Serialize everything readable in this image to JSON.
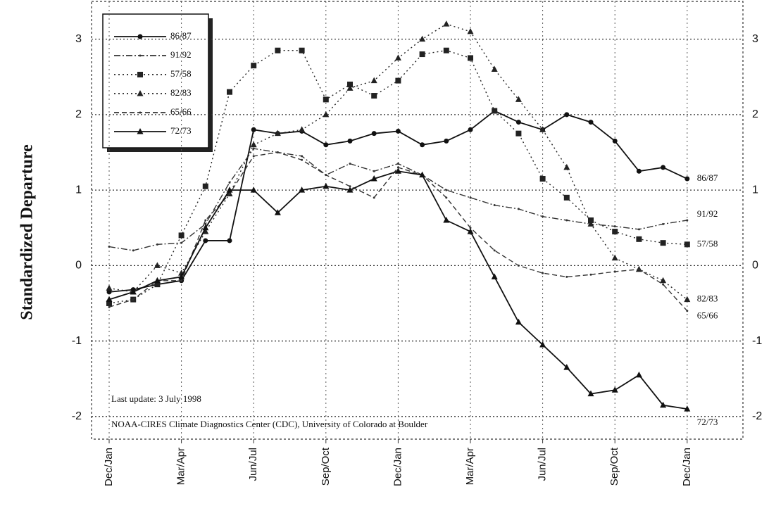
{
  "chart_data": {
    "type": "line",
    "ylabel": "Standardized Departure",
    "annotations": [
      "Last update: 3 July 1998",
      "NOAA-CIRES Climate Diagnostics Center (CDC), University of Colorado at Boulder"
    ],
    "categories": [
      "Dec/Jan",
      null,
      null,
      "Mar/Apr",
      null,
      null,
      "Jun/Jul",
      null,
      null,
      "Sep/Oct",
      null,
      null,
      "Dec/Jan",
      null,
      null,
      "Mar/Apr",
      null,
      null,
      "Jun/Jul",
      null,
      null,
      "Sep/Oct",
      null,
      null,
      "Dec/Jan"
    ],
    "ylim": [
      -2.3,
      3.5
    ],
    "yticks": [
      -2,
      -1,
      0,
      1,
      2,
      3
    ],
    "grid": true,
    "legend": "upper left",
    "series": [
      {
        "name": "86/87",
        "color": "#111111",
        "dash": "solid",
        "marker": "circle",
        "values": [
          -0.35,
          -0.32,
          -0.25,
          -0.2,
          0.33,
          0.33,
          1.8,
          1.75,
          1.78,
          1.6,
          1.65,
          1.75,
          1.78,
          1.6,
          1.65,
          1.8,
          2.05,
          1.9,
          1.8,
          2.0,
          1.9,
          1.65,
          1.25,
          1.3,
          1.15
        ]
      },
      {
        "name": "91/92",
        "color": "#333333",
        "dash": "dashdot",
        "marker": "none",
        "values": [
          0.25,
          0.2,
          0.28,
          0.3,
          0.55,
          1.1,
          1.55,
          1.5,
          1.45,
          1.2,
          1.35,
          1.25,
          1.35,
          1.2,
          1.0,
          0.9,
          0.8,
          0.75,
          0.65,
          0.6,
          0.55,
          0.52,
          0.48,
          0.55,
          0.6
        ]
      },
      {
        "name": "57/58",
        "color": "#222222",
        "dash": "dotted",
        "marker": "square",
        "values": [
          -0.5,
          -0.45,
          -0.25,
          0.4,
          1.05,
          2.3,
          2.65,
          2.85,
          2.85,
          2.2,
          2.4,
          2.25,
          2.45,
          2.8,
          2.85,
          2.75,
          2.05,
          1.75,
          1.15,
          0.9,
          0.6,
          0.45,
          0.35,
          0.3,
          0.28
        ]
      },
      {
        "name": "82/83",
        "color": "#222222",
        "dash": "dotted",
        "marker": "triangle",
        "values": [
          -0.3,
          -0.35,
          0.0,
          -0.1,
          0.45,
          0.95,
          1.6,
          1.75,
          1.8,
          2.0,
          2.35,
          2.45,
          2.75,
          3.0,
          3.2,
          3.1,
          2.6,
          2.2,
          1.8,
          1.3,
          0.55,
          0.1,
          -0.05,
          -0.2,
          -0.45
        ]
      },
      {
        "name": "65/66",
        "color": "#333333",
        "dash": "dashed",
        "marker": "none",
        "values": [
          -0.55,
          -0.45,
          -0.2,
          -0.2,
          0.6,
          0.95,
          1.45,
          1.5,
          1.4,
          1.2,
          1.05,
          0.9,
          1.3,
          1.2,
          0.9,
          0.5,
          0.2,
          0.0,
          -0.1,
          -0.15,
          -0.12,
          -0.08,
          -0.05,
          -0.25,
          -0.6
        ]
      },
      {
        "name": "72/73",
        "color": "#111111",
        "dash": "solid",
        "marker": "triangle",
        "values": [
          -0.45,
          -0.35,
          -0.2,
          -0.15,
          0.5,
          1.0,
          1.0,
          0.7,
          1.0,
          1.05,
          1.0,
          1.15,
          1.25,
          1.2,
          0.6,
          0.45,
          -0.15,
          -0.75,
          -1.05,
          -1.35,
          -1.7,
          -1.65,
          -1.45,
          -1.85,
          -1.9
        ]
      }
    ]
  }
}
